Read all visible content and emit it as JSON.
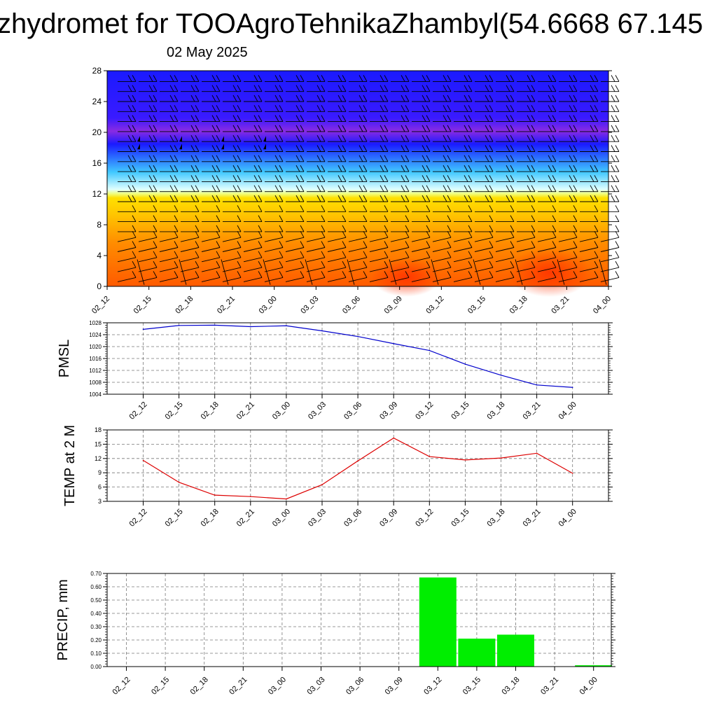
{
  "page": {
    "title": "zhydromet for TOOAgroTehnikaZhambyl(54.6668 67.145",
    "subtitle": "02 May 2025"
  },
  "colors": {
    "pmsl_line": "#0000cc",
    "temp_line": "#dd0000",
    "precip_bar": "#00ee00",
    "cross_section_low": "#ff5a00",
    "cross_section_mid": "#ffe000",
    "cross_section_cyan": "#40c8ff",
    "cross_section_top": "#1a1aff",
    "cross_section_purple": "#8a2be2"
  },
  "chart_data": [
    {
      "type": "heatmap",
      "name": "cross-section",
      "x_ticks": [
        "02_12",
        "02_15",
        "02_18",
        "02_21",
        "03_00",
        "03_03",
        "03_06",
        "03_09",
        "03_12",
        "03_15",
        "03_18",
        "03_21",
        "04_00"
      ],
      "y_ticks": [
        "0",
        "4",
        "8",
        "12",
        "16",
        "20",
        "24",
        "28"
      ],
      "ylim": [
        0,
        28
      ],
      "layers": [
        {
          "band": "warm",
          "from": 0,
          "to": 11.5
        },
        {
          "band": "cool",
          "from": 11.5,
          "to": 18.5
        },
        {
          "band": "cold",
          "from": 18.5,
          "to": 28
        }
      ],
      "wind_barbs": true,
      "grid": false
    },
    {
      "type": "line",
      "ylabel": "PMSL",
      "categories": [
        "02_12",
        "02_15",
        "02_18",
        "02_21",
        "03_00",
        "03_03",
        "03_06",
        "03_09",
        "03_12",
        "03_15",
        "03_18",
        "03_21",
        "04_00"
      ],
      "values": [
        1025.8,
        1027.1,
        1027.2,
        1026.7,
        1027.0,
        1025.3,
        1023.4,
        1021.0,
        1018.7,
        1014.1,
        1010.4,
        1007.1,
        1006.3
      ],
      "ylim": [
        1004,
        1028
      ],
      "y_ticks": [
        "1004",
        "1008",
        "1012",
        "1016",
        "1020",
        "1024",
        "1028"
      ],
      "grid": true
    },
    {
      "type": "line",
      "ylabel": "TEMP at 2 M",
      "categories": [
        "02_12",
        "02_15",
        "02_18",
        "02_21",
        "03_00",
        "03_03",
        "03_06",
        "03_09",
        "03_12",
        "03_15",
        "03_18",
        "03_21",
        "04_00"
      ],
      "values": [
        11.6,
        7.0,
        4.3,
        4.0,
        3.5,
        6.5,
        11.5,
        16.3,
        12.4,
        11.7,
        12.1,
        13.1,
        8.9
      ],
      "ylim": [
        3,
        18
      ],
      "y_ticks": [
        "3",
        "6",
        "9",
        "12",
        "15",
        "18"
      ],
      "grid": true
    },
    {
      "type": "bar",
      "ylabel": "PRECIP, mm",
      "categories": [
        "02_12",
        "02_15",
        "02_18",
        "02_21",
        "03_00",
        "03_03",
        "03_06",
        "03_09",
        "03_12",
        "03_15",
        "03_18",
        "03_21",
        "04_00"
      ],
      "values": [
        0,
        0,
        0,
        0,
        0,
        0,
        0,
        0,
        0.67,
        0.21,
        0.24,
        0,
        0.01
      ],
      "ylim": [
        0,
        0.7
      ],
      "y_ticks": [
        "0.00",
        "0.10",
        "0.20",
        "0.30",
        "0.40",
        "0.50",
        "0.60",
        "0.70"
      ],
      "grid": true
    }
  ]
}
